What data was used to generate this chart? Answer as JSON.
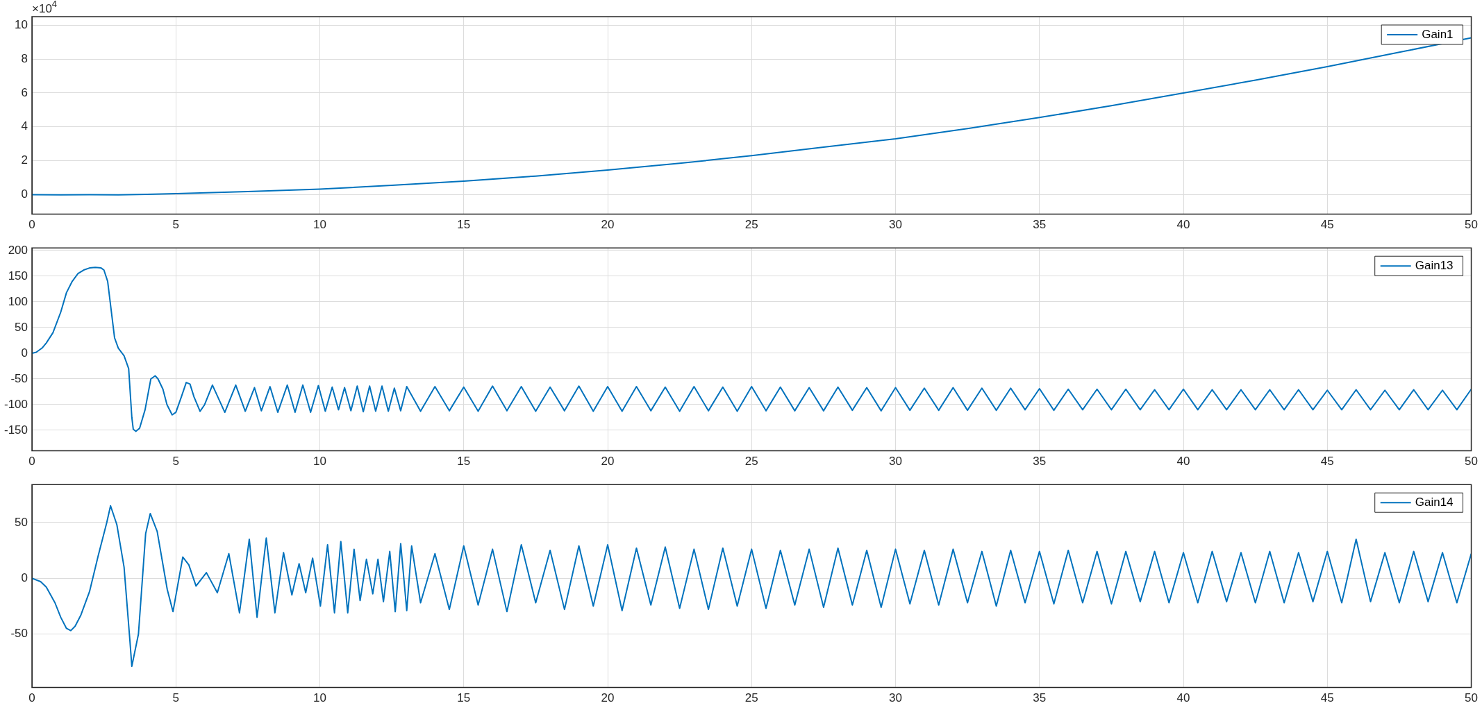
{
  "chart_data": [
    {
      "type": "line",
      "annotations": [
        "×10$^{4}$"
      ],
      "x": [
        0,
        1,
        2,
        3,
        4,
        5,
        7.5,
        10,
        12.5,
        15,
        17.5,
        20,
        22.5,
        25,
        27.5,
        30,
        32.5,
        35,
        37.5,
        40,
        42.5,
        45,
        47.5,
        50
      ],
      "series": [
        {
          "name": "Gain1",
          "color": "#0072bd",
          "values": [
            0,
            -0.01,
            0,
            -0.01,
            0.02,
            0.06,
            0.18,
            0.33,
            0.55,
            0.8,
            1.1,
            1.45,
            1.85,
            2.3,
            2.8,
            3.3,
            3.9,
            4.55,
            5.25,
            6.0,
            6.75,
            7.55,
            8.4,
            9.25
          ]
        }
      ],
      "xlim": [
        0,
        50
      ],
      "xticks": [
        0,
        5,
        10,
        15,
        20,
        25,
        30,
        35,
        40,
        45,
        50
      ],
      "ylim": [
        -1.15,
        10.5
      ],
      "yticks": [
        0,
        2,
        4,
        6,
        8,
        10
      ],
      "grid": true,
      "legend": "top right"
    },
    {
      "type": "line",
      "x": [
        0,
        0.15,
        0.35,
        0.5,
        0.73,
        1.0,
        1.2,
        1.4,
        1.6,
        1.8,
        2.0,
        2.2,
        2.4,
        2.5,
        2.63,
        2.87,
        3.0,
        3.2,
        3.36,
        3.47,
        3.52,
        3.61,
        3.74,
        3.93,
        4.13,
        4.28,
        4.38,
        4.55,
        4.69,
        4.87,
        5.0,
        5.19,
        5.36,
        5.49,
        5.63,
        5.84,
        6.0,
        6.27,
        6.7,
        7.08,
        7.41,
        7.73,
        7.97,
        8.27,
        8.54,
        8.87,
        9.14,
        9.41,
        9.68,
        9.95,
        10.19,
        10.43,
        10.65,
        10.86,
        11.08,
        11.3,
        11.51,
        11.73,
        11.94,
        12.16,
        12.38,
        12.59,
        12.81,
        13.02,
        13.5,
        14,
        14.5,
        15,
        15.5,
        16,
        16.5,
        17,
        17.5,
        18,
        18.5,
        19,
        19.5,
        20,
        20.5,
        21,
        21.5,
        22,
        22.5,
        23,
        23.5,
        24,
        24.5,
        25,
        25.5,
        26,
        26.5,
        27,
        27.5,
        28,
        28.5,
        29,
        29.5,
        30,
        30.5,
        31,
        31.5,
        32,
        32.5,
        33,
        33.5,
        34,
        34.5,
        35,
        35.5,
        36,
        36.5,
        37,
        37.5,
        38,
        38.5,
        39,
        39.5,
        40,
        40.5,
        41,
        41.5,
        42,
        42.5,
        43,
        43.5,
        44,
        44.5,
        45,
        45.5,
        46,
        46.5,
        47,
        47.5,
        48,
        48.5,
        49,
        49.5,
        50
      ],
      "series": [
        {
          "name": "Gain13",
          "color": "#0072bd",
          "values": [
            0,
            2,
            10,
            20,
            40,
            80,
            118,
            140,
            155,
            162,
            166,
            167,
            166,
            162,
            140,
            30,
            10,
            -5,
            -30,
            -125,
            -148,
            -152,
            -146,
            -110,
            -50,
            -44,
            -50,
            -70,
            -100,
            -120,
            -115,
            -85,
            -57,
            -60,
            -85,
            -113,
            -100,
            -62,
            -115,
            -62,
            -113,
            -67,
            -112,
            -65,
            -115,
            -62,
            -115,
            -62,
            -115,
            -63,
            -113,
            -66,
            -110,
            -67,
            -112,
            -64,
            -114,
            -64,
            -113,
            -64,
            -113,
            -68,
            -112,
            -65,
            -113,
            -65,
            -112,
            -66,
            -113,
            -64,
            -112,
            -65,
            -113,
            -66,
            -112,
            -64,
            -113,
            -65,
            -113,
            -65,
            -112,
            -66,
            -113,
            -65,
            -112,
            -66,
            -113,
            -65,
            -112,
            -66,
            -112,
            -67,
            -112,
            -66,
            -111,
            -67,
            -112,
            -67,
            -111,
            -68,
            -111,
            -67,
            -111,
            -68,
            -111,
            -68,
            -110,
            -69,
            -111,
            -70,
            -110,
            -70,
            -110,
            -70,
            -110,
            -71,
            -110,
            -70,
            -110,
            -71,
            -110,
            -71,
            -110,
            -71,
            -110,
            -71,
            -110,
            -72,
            -110,
            -71,
            -110,
            -72,
            -110,
            -71,
            -110,
            -72,
            -110,
            -70
          ]
        }
      ],
      "xlim": [
        0,
        50
      ],
      "xticks": [
        0,
        5,
        10,
        15,
        20,
        25,
        30,
        35,
        40,
        45,
        50
      ],
      "ylim": [
        -190,
        205
      ],
      "yticks": [
        -150,
        -100,
        -50,
        0,
        50,
        100,
        150,
        200
      ],
      "grid": true,
      "legend": "top right"
    },
    {
      "type": "line",
      "x": [
        0,
        0.3,
        0.5,
        0.8,
        1.0,
        1.2,
        1.35,
        1.5,
        1.7,
        2.0,
        2.3,
        2.6,
        2.73,
        2.95,
        3.2,
        3.4,
        3.47,
        3.7,
        3.95,
        4.11,
        4.35,
        4.7,
        4.9,
        5.24,
        5.45,
        5.7,
        6.06,
        6.44,
        6.84,
        7.21,
        7.55,
        7.82,
        8.14,
        8.44,
        8.74,
        9.03,
        9.28,
        9.51,
        9.75,
        10.02,
        10.27,
        10.51,
        10.73,
        10.97,
        11.19,
        11.4,
        11.62,
        11.84,
        12.02,
        12.21,
        12.43,
        12.62,
        12.81,
        13.02,
        13.19,
        13.5,
        14,
        14.5,
        15,
        15.5,
        16,
        16.5,
        17,
        17.5,
        18,
        18.5,
        19,
        19.5,
        20,
        20.5,
        21,
        21.5,
        22,
        22.5,
        23,
        23.5,
        24,
        24.5,
        25,
        25.5,
        26,
        26.5,
        27,
        27.5,
        28,
        28.5,
        29,
        29.5,
        30,
        30.5,
        31,
        31.5,
        32,
        32.5,
        33,
        33.5,
        34,
        34.5,
        35,
        35.5,
        36,
        36.5,
        37,
        37.5,
        38,
        38.5,
        39,
        39.5,
        40,
        40.5,
        41,
        41.5,
        42,
        42.5,
        43,
        43.5,
        44,
        44.5,
        45,
        45.5,
        46,
        46.5,
        47,
        47.5,
        48,
        48.5,
        49,
        49.5,
        50
      ],
      "series": [
        {
          "name": "Gain14",
          "color": "#0072bd",
          "values": [
            0,
            -3,
            -8,
            -22,
            -35,
            -45,
            -47,
            -43,
            -33,
            -12,
            20,
            50,
            65,
            48,
            10,
            -55,
            -79,
            -50,
            40,
            58,
            42,
            -10,
            -30,
            19,
            12,
            -7,
            5,
            -13,
            22,
            -31,
            35,
            -35,
            36,
            -31,
            23,
            -15,
            13,
            -13,
            18,
            -25,
            30,
            -31,
            33,
            -31,
            26,
            -20,
            17,
            -14,
            17,
            -21,
            24,
            -30,
            31,
            -29,
            29,
            -22,
            22,
            -28,
            29,
            -24,
            26,
            -30,
            30,
            -22,
            25,
            -28,
            29,
            -25,
            30,
            -29,
            27,
            -24,
            28,
            -27,
            26,
            -28,
            27,
            -25,
            26,
            -27,
            25,
            -24,
            26,
            -26,
            27,
            -24,
            25,
            -26,
            26,
            -23,
            25,
            -24,
            26,
            -22,
            24,
            -25,
            25,
            -22,
            24,
            -23,
            25,
            -22,
            24,
            -23,
            24,
            -21,
            24,
            -22,
            23,
            -22,
            24,
            -21,
            23,
            -22,
            24,
            -22,
            23,
            -21,
            24,
            -22,
            35,
            -21,
            23,
            -22,
            24,
            -21,
            23,
            -22,
            22
          ]
        }
      ],
      "xlim": [
        0,
        50
      ],
      "xticks": [
        0,
        5,
        10,
        15,
        20,
        25,
        30,
        35,
        40,
        45,
        50
      ],
      "ylim": [
        -98,
        84
      ],
      "yticks": [
        -50,
        0,
        50
      ],
      "grid": true,
      "legend": "top right"
    }
  ]
}
